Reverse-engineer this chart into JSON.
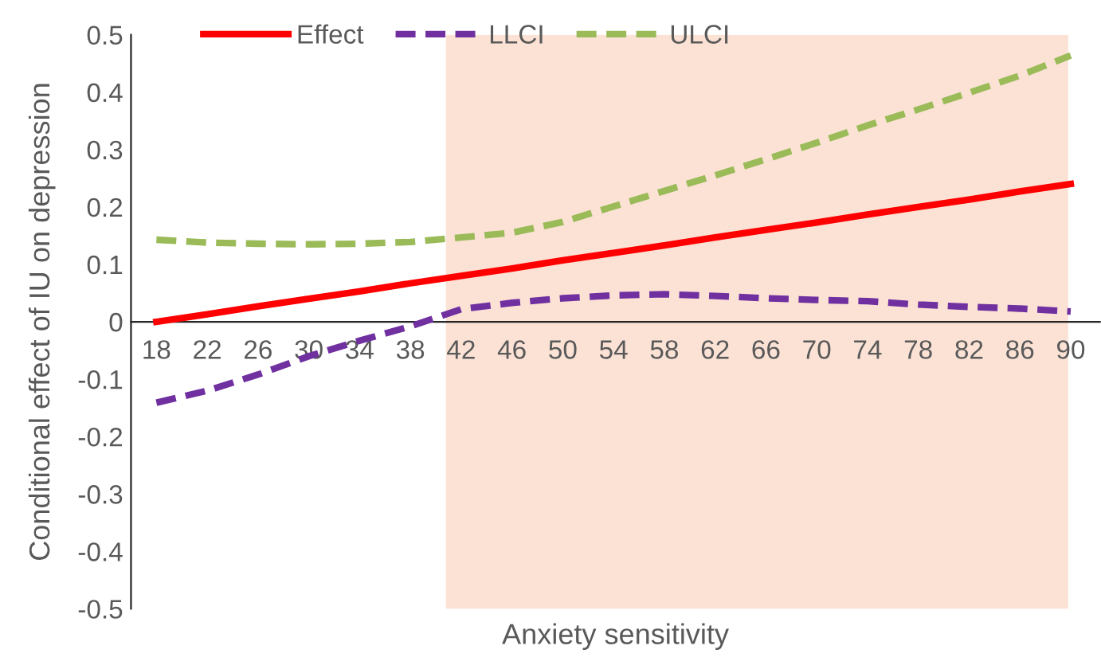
{
  "chart_data": {
    "type": "line",
    "xlabel": "Anxiety sensitivity",
    "ylabel": "Conditional effect of IU on depression",
    "x": [
      18,
      22,
      26,
      30,
      34,
      38,
      42,
      46,
      50,
      54,
      58,
      62,
      66,
      70,
      74,
      78,
      82,
      86,
      90
    ],
    "xlim": [
      16,
      92.3
    ],
    "xticks": [
      18,
      22,
      26,
      30,
      34,
      38,
      42,
      46,
      50,
      54,
      58,
      62,
      66,
      70,
      74,
      78,
      82,
      86,
      90
    ],
    "ylim": [
      -0.5,
      0.5
    ],
    "yticks": [
      -0.5,
      -0.4,
      -0.3,
      -0.2,
      -0.1,
      0,
      0.1,
      0.2,
      0.3,
      0.4,
      0.5
    ],
    "grid": false,
    "legend": "top left",
    "marker": "none",
    "series": [
      {
        "name": "Effect",
        "color": "#ff0000",
        "line_style": "solid",
        "values": [
          0,
          0.013,
          0.027,
          0.04,
          0.053,
          0.067,
          0.08,
          0.093,
          0.107,
          0.12,
          0.133,
          0.147,
          0.16,
          0.173,
          0.187,
          0.2,
          0.213,
          0.227,
          0.24
        ]
      },
      {
        "name": "LLCI",
        "color": "#7030a0",
        "line_style": "dashed",
        "values": [
          -0.141,
          -0.12,
          -0.092,
          -0.06,
          -0.033,
          -0.008,
          0.022,
          0.033,
          0.041,
          0.046,
          0.048,
          0.045,
          0.041,
          0.038,
          0.036,
          0.03,
          0.026,
          0.023,
          0.018
        ]
      },
      {
        "name": "ULCI",
        "color": "#9bbb59",
        "line_style": "dashed",
        "values": [
          0.143,
          0.138,
          0.136,
          0.135,
          0.136,
          0.139,
          0.147,
          0.155,
          0.174,
          0.201,
          0.228,
          0.255,
          0.283,
          0.312,
          0.342,
          0.37,
          0.399,
          0.429,
          0.464
        ]
      }
    ],
    "bands": [
      {
        "axis": "x",
        "from": 40.8,
        "to": 89.8,
        "color": "#fbe2d5"
      }
    ]
  }
}
